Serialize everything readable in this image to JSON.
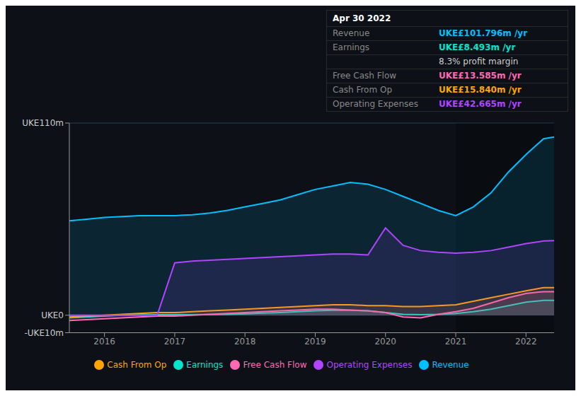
{
  "chart_data": {
    "type": "area",
    "title": "Apr 30 2022",
    "x": [
      2015.5,
      2015.75,
      2016.0,
      2016.25,
      2016.5,
      2016.75,
      2017.0,
      2017.25,
      2017.5,
      2017.75,
      2018.0,
      2018.25,
      2018.5,
      2018.75,
      2019.0,
      2019.25,
      2019.5,
      2019.75,
      2020.0,
      2020.25,
      2020.5,
      2020.75,
      2021.0,
      2021.25,
      2021.5,
      2021.75,
      2022.0,
      2022.25,
      2022.4
    ],
    "series": [
      {
        "name": "Revenue",
        "color": "#00bfff",
        "values": [
          54,
          55,
          56,
          56.5,
          57,
          57,
          57,
          57.5,
          58.5,
          60,
          62,
          64,
          66,
          69,
          72,
          74,
          76,
          75,
          72,
          68,
          64,
          60,
          57,
          62,
          70,
          82,
          92,
          101,
          102
        ]
      },
      {
        "name": "Earnings",
        "color": "#00e5cc",
        "values": [
          -1.5,
          -1,
          -0.5,
          0,
          0.2,
          0.3,
          0.3,
          0.3,
          0.4,
          0.5,
          0.8,
          1.2,
          1.5,
          2.0,
          2.5,
          2.8,
          2.8,
          2.5,
          1.5,
          0.5,
          0.3,
          0.5,
          1.0,
          2.0,
          3.5,
          5.5,
          7.5,
          8.5,
          8.5
        ]
      },
      {
        "name": "Free Cash Flow",
        "color": "#ff69b4",
        "values": [
          -3,
          -2.5,
          -2,
          -1.5,
          -1,
          -0.5,
          -0.5,
          0,
          0.5,
          1.0,
          1.5,
          2.0,
          2.5,
          3.0,
          3.5,
          3.5,
          3.0,
          2.5,
          1.5,
          -1,
          -1.5,
          0.5,
          2.0,
          4.0,
          7.0,
          10.0,
          12.5,
          13.5,
          13.5
        ]
      },
      {
        "name": "Cash From Op",
        "color": "#ffa500",
        "values": [
          -1,
          -0.5,
          0,
          0.5,
          1,
          1.5,
          1.5,
          2.0,
          2.5,
          3.0,
          3.5,
          4.0,
          4.5,
          5.0,
          5.5,
          6.0,
          6.0,
          5.5,
          5.5,
          5.0,
          5.0,
          5.5,
          6.0,
          8.0,
          10.0,
          12.0,
          14.0,
          15.8,
          15.8
        ]
      },
      {
        "name": "Operating Expenses",
        "color": "#b044ff",
        "values": [
          0,
          0,
          0,
          0,
          0,
          0,
          30,
          31,
          31.5,
          32,
          32.5,
          33,
          33.5,
          34,
          34.5,
          35,
          35,
          34.5,
          50,
          40,
          37,
          36,
          35.5,
          36,
          37,
          39,
          41,
          42.5,
          42.7
        ]
      }
    ],
    "xlim": [
      2015.5,
      2022.4
    ],
    "xticks": [
      2016,
      2017,
      2018,
      2019,
      2020,
      2021,
      2022
    ],
    "ylim": [
      -10,
      110
    ],
    "yticks": [
      {
        "value": -10,
        "label": "-UKE10m"
      },
      {
        "value": 0,
        "label": "UKE0"
      },
      {
        "value": 110,
        "label": "UKE110m"
      }
    ],
    "highlight_x": [
      2021.0,
      2022.4
    ],
    "grid": true,
    "legend": "bottom",
    "table_rows": [
      {
        "label": "Revenue",
        "value": "UKE£101.796m /yr",
        "color": "#00bfff"
      },
      {
        "label": "Earnings",
        "value": "UKE£8.493m /yr",
        "color": "#00e5cc"
      },
      {
        "value": "8.3% profit margin",
        "color": "#cccccc"
      },
      {
        "label": "Free Cash Flow",
        "value": "UKE£13.585m /yr",
        "color": "#ff69b4"
      },
      {
        "label": "Cash From Op",
        "value": "UKE£15.840m /yr",
        "color": "#ffa500"
      },
      {
        "label": "Operating Expenses",
        "value": "UKE£42.665m /yr",
        "color": "#b044ff"
      }
    ]
  }
}
